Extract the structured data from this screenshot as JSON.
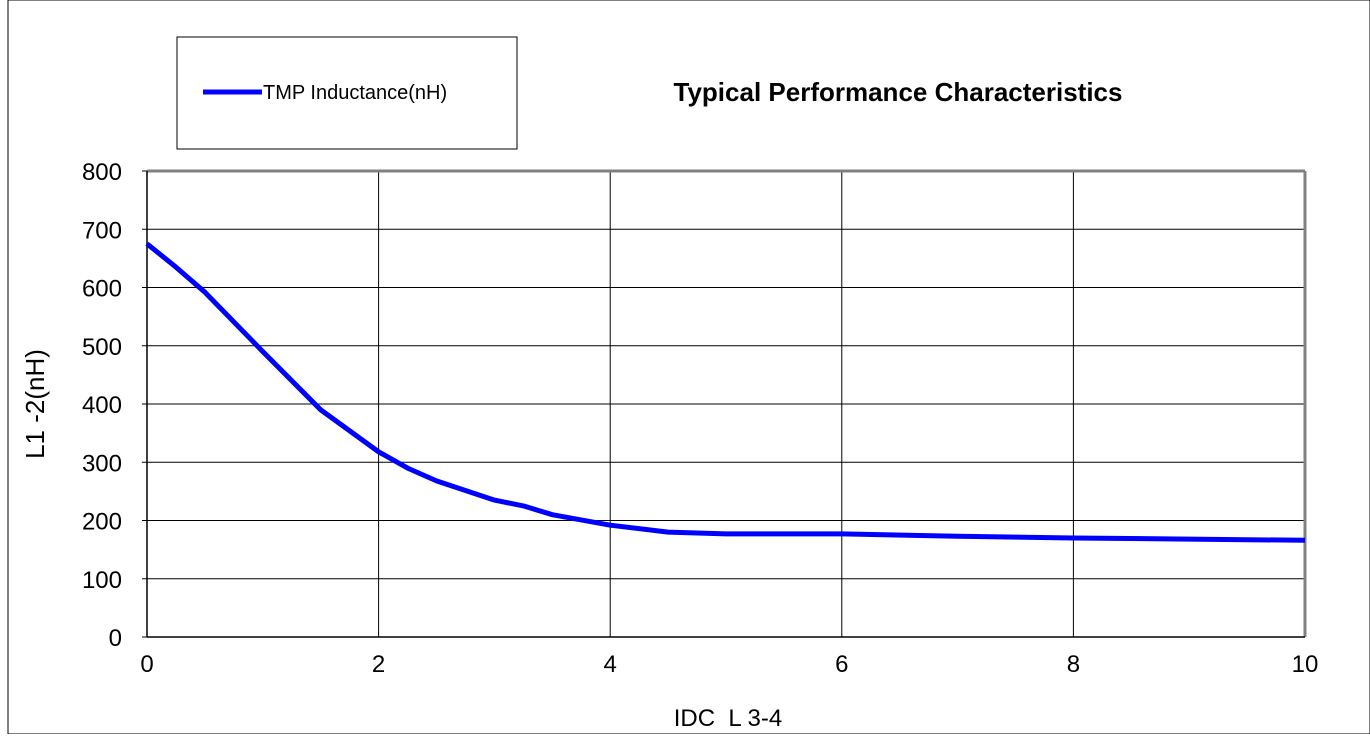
{
  "chart_data": {
    "type": "line",
    "title": "Typical Performance Characteristics",
    "xlabel": "IDC  L 3-4",
    "ylabel": "L1 -2(nH)",
    "xlim": [
      0,
      10
    ],
    "ylim": [
      0,
      800
    ],
    "x_ticks": [
      "0",
      "2",
      "4",
      "6",
      "8",
      "10"
    ],
    "y_ticks": [
      "0",
      "100",
      "200",
      "300",
      "400",
      "500",
      "600",
      "700",
      "800"
    ],
    "grid": true,
    "legend_position": "top-left",
    "series": [
      {
        "name": "TMP Inductance(nH)",
        "color": "#0000ff",
        "x": [
          0,
          0.25,
          0.5,
          1,
          1.5,
          2,
          2.25,
          2.5,
          3,
          3.25,
          3.5,
          4,
          4.5,
          5,
          6,
          7,
          8,
          9,
          10
        ],
        "y": [
          675,
          635,
          592,
          490,
          390,
          318,
          290,
          268,
          235,
          225,
          210,
          192,
          180,
          177,
          177,
          173,
          170,
          168,
          166
        ]
      }
    ]
  }
}
